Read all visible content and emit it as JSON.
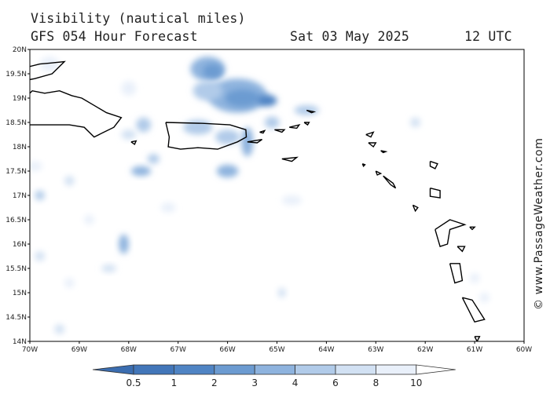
{
  "title": {
    "line1": "Visibility (nautical miles)",
    "model": "GFS 054 Hour Forecast",
    "date": "Sat 03 May 2025",
    "time": "12 UTC"
  },
  "credit": "© www.PassageWeather.com",
  "map_extent": {
    "lon_min": -70,
    "lon_max": -60,
    "lat_min": 14,
    "lat_max": 20
  },
  "lat_ticks": [
    {
      "value": 20,
      "label": "20N"
    },
    {
      "value": 19.5,
      "label": "19.5N"
    },
    {
      "value": 19,
      "label": "19N"
    },
    {
      "value": 18.5,
      "label": "18.5N"
    },
    {
      "value": 18,
      "label": "18N"
    },
    {
      "value": 17.5,
      "label": "17.5N"
    },
    {
      "value": 17,
      "label": "17N"
    },
    {
      "value": 16.5,
      "label": "16.5N"
    },
    {
      "value": 16,
      "label": "16N"
    },
    {
      "value": 15.5,
      "label": "15.5N"
    },
    {
      "value": 15,
      "label": "15N"
    },
    {
      "value": 14.5,
      "label": "14.5N"
    },
    {
      "value": 14,
      "label": "14N"
    }
  ],
  "lon_ticks": [
    {
      "value": -70,
      "label": "70W"
    },
    {
      "value": -69,
      "label": "69W"
    },
    {
      "value": -68,
      "label": "68W"
    },
    {
      "value": -67,
      "label": "67W"
    },
    {
      "value": -66,
      "label": "66W"
    },
    {
      "value": -65,
      "label": "65W"
    },
    {
      "value": -64,
      "label": "64W"
    },
    {
      "value": -63,
      "label": "63W"
    },
    {
      "value": -62,
      "label": "62W"
    },
    {
      "value": -61,
      "label": "61W"
    },
    {
      "value": -60,
      "label": "60W"
    }
  ],
  "legend": {
    "levels": [
      "0.5",
      "1",
      "2",
      "3",
      "4",
      "6",
      "8",
      "10"
    ],
    "colors": [
      "#4276b9",
      "#4f84c4",
      "#6c9bd1",
      "#8eb3de",
      "#b1cbe9",
      "#d2e1f3",
      "#e9f0fa",
      "#ffffff"
    ]
  },
  "visibility_blobs": [
    {
      "lon": -66.4,
      "lat": 19.6,
      "rlon": 0.35,
      "rlat": 0.25,
      "color": "#8eb3de"
    },
    {
      "lon": -66.3,
      "lat": 19.55,
      "rlon": 0.2,
      "rlat": 0.15,
      "color": "#6c9bd1"
    },
    {
      "lon": -65.8,
      "lat": 19.05,
      "rlon": 0.6,
      "rlat": 0.35,
      "color": "#8eb3de"
    },
    {
      "lon": -65.7,
      "lat": 19.0,
      "rlon": 0.35,
      "rlat": 0.18,
      "color": "#6c9bd1"
    },
    {
      "lon": -65.2,
      "lat": 18.95,
      "rlon": 0.2,
      "rlat": 0.12,
      "color": "#4f84c4"
    },
    {
      "lon": -64.4,
      "lat": 18.75,
      "rlon": 0.25,
      "rlat": 0.1,
      "color": "#b1cbe9"
    },
    {
      "lon": -65.6,
      "lat": 18.1,
      "rlon": 0.12,
      "rlat": 0.3,
      "color": "#8eb3de"
    },
    {
      "lon": -66.6,
      "lat": 18.4,
      "rlon": 0.3,
      "rlat": 0.15,
      "color": "#b1cbe9"
    },
    {
      "lon": -66.0,
      "lat": 18.2,
      "rlon": 0.25,
      "rlat": 0.15,
      "color": "#b1cbe9"
    },
    {
      "lon": -66.4,
      "lat": 19.15,
      "rlon": 0.3,
      "rlat": 0.2,
      "color": "#b1cbe9"
    },
    {
      "lon": -65.1,
      "lat": 18.5,
      "rlon": 0.15,
      "rlat": 0.12,
      "color": "#b1cbe9"
    },
    {
      "lon": -67.7,
      "lat": 18.45,
      "rlon": 0.15,
      "rlat": 0.15,
      "color": "#b1cbe9"
    },
    {
      "lon": -68.0,
      "lat": 18.25,
      "rlon": 0.15,
      "rlat": 0.1,
      "color": "#d2e1f3"
    },
    {
      "lon": -67.75,
      "lat": 17.5,
      "rlon": 0.2,
      "rlat": 0.1,
      "color": "#8eb3de"
    },
    {
      "lon": -66.0,
      "lat": 17.5,
      "rlon": 0.22,
      "rlat": 0.13,
      "color": "#8eb3de"
    },
    {
      "lon": -67.5,
      "lat": 17.75,
      "rlon": 0.12,
      "rlat": 0.1,
      "color": "#b1cbe9"
    },
    {
      "lon": -68.1,
      "lat": 16.0,
      "rlon": 0.1,
      "rlat": 0.2,
      "color": "#8eb3de"
    },
    {
      "lon": -69.8,
      "lat": 17.0,
      "rlon": 0.1,
      "rlat": 0.1,
      "color": "#b1cbe9"
    },
    {
      "lon": -69.8,
      "lat": 15.75,
      "rlon": 0.1,
      "rlat": 0.1,
      "color": "#d2e1f3"
    },
    {
      "lon": -69.4,
      "lat": 14.25,
      "rlon": 0.1,
      "rlat": 0.1,
      "color": "#d2e1f3"
    },
    {
      "lon": -69.2,
      "lat": 17.3,
      "rlon": 0.1,
      "rlat": 0.1,
      "color": "#d2e1f3"
    },
    {
      "lon": -69.9,
      "lat": 17.6,
      "rlon": 0.15,
      "rlat": 0.1,
      "color": "#e9f0fa"
    },
    {
      "lon": -68.4,
      "lat": 15.5,
      "rlon": 0.15,
      "rlat": 0.08,
      "color": "#d2e1f3"
    },
    {
      "lon": -69.2,
      "lat": 15.2,
      "rlon": 0.1,
      "rlat": 0.1,
      "color": "#e9f0fa"
    },
    {
      "lon": -67.2,
      "lat": 16.75,
      "rlon": 0.15,
      "rlat": 0.1,
      "color": "#e9f0fa"
    },
    {
      "lon": -64.7,
      "lat": 16.9,
      "rlon": 0.2,
      "rlat": 0.1,
      "color": "#e9f0fa"
    },
    {
      "lon": -62.2,
      "lat": 18.5,
      "rlon": 0.1,
      "rlat": 0.1,
      "color": "#d2e1f3"
    },
    {
      "lon": -64.9,
      "lat": 15.0,
      "rlon": 0.08,
      "rlat": 0.1,
      "color": "#d2e1f3"
    },
    {
      "lon": -68.8,
      "lat": 16.5,
      "rlon": 0.1,
      "rlat": 0.1,
      "color": "#e9f0fa"
    },
    {
      "lon": -69.6,
      "lat": 19.7,
      "rlon": 0.2,
      "rlat": 0.15,
      "color": "#e9f0fa"
    },
    {
      "lon": -68.0,
      "lat": 19.2,
      "rlon": 0.15,
      "rlat": 0.15,
      "color": "#e9f0fa"
    },
    {
      "lon": -61.0,
      "lat": 15.3,
      "rlon": 0.1,
      "rlat": 0.1,
      "color": "#e9f0fa"
    },
    {
      "lon": -60.8,
      "lat": 14.9,
      "rlon": 0.1,
      "rlat": 0.1,
      "color": "#e9f0fa"
    }
  ],
  "coastlines": [
    {
      "name": "hispaniola",
      "points": [
        [
          -70,
          18.45
        ],
        [
          -69.6,
          18.45
        ],
        [
          -69.2,
          18.45
        ],
        [
          -68.9,
          18.4
        ],
        [
          -68.7,
          18.2
        ],
        [
          -68.5,
          18.3
        ],
        [
          -68.3,
          18.4
        ],
        [
          -68.15,
          18.6
        ],
        [
          -68.45,
          18.7
        ],
        [
          -68.7,
          18.85
        ],
        [
          -68.95,
          19.0
        ],
        [
          -69.15,
          19.05
        ],
        [
          -69.4,
          19.15
        ],
        [
          -69.7,
          19.1
        ],
        [
          -69.95,
          19.15
        ],
        [
          -70,
          19.1
        ]
      ]
    },
    {
      "name": "hispaniola-north-coast",
      "points": [
        [
          -70,
          19.65
        ],
        [
          -69.8,
          19.7
        ],
        [
          -69.6,
          19.72
        ],
        [
          -69.3,
          19.75
        ],
        [
          -69.55,
          19.5
        ],
        [
          -69.9,
          19.4
        ],
        [
          -70,
          19.38
        ]
      ]
    },
    {
      "name": "puerto-rico",
      "points": [
        [
          -67.25,
          18.5
        ],
        [
          -66.5,
          18.48
        ],
        [
          -65.95,
          18.45
        ],
        [
          -65.63,
          18.35
        ],
        [
          -65.62,
          18.2
        ],
        [
          -65.8,
          18.1
        ],
        [
          -66.2,
          17.95
        ],
        [
          -66.6,
          17.98
        ],
        [
          -66.95,
          17.95
        ],
        [
          -67.2,
          18.0
        ],
        [
          -67.18,
          18.2
        ],
        [
          -67.25,
          18.5
        ]
      ]
    },
    {
      "name": "mona-island",
      "points": [
        [
          -67.95,
          18.1
        ],
        [
          -67.85,
          18.12
        ],
        [
          -67.88,
          18.05
        ],
        [
          -67.95,
          18.1
        ]
      ]
    },
    {
      "name": "vieques",
      "points": [
        [
          -65.6,
          18.1
        ],
        [
          -65.3,
          18.15
        ],
        [
          -65.4,
          18.08
        ],
        [
          -65.6,
          18.1
        ]
      ]
    },
    {
      "name": "culebra",
      "points": [
        [
          -65.35,
          18.3
        ],
        [
          -65.25,
          18.33
        ],
        [
          -65.28,
          18.28
        ],
        [
          -65.35,
          18.3
        ]
      ]
    },
    {
      "name": "st-thomas",
      "points": [
        [
          -65.05,
          18.35
        ],
        [
          -64.85,
          18.35
        ],
        [
          -64.9,
          18.3
        ],
        [
          -65.05,
          18.35
        ]
      ]
    },
    {
      "name": "tortola",
      "points": [
        [
          -64.75,
          18.4
        ],
        [
          -64.55,
          18.45
        ],
        [
          -64.6,
          18.38
        ],
        [
          -64.75,
          18.4
        ]
      ]
    },
    {
      "name": "virgin-gorda",
      "points": [
        [
          -64.45,
          18.5
        ],
        [
          -64.35,
          18.5
        ],
        [
          -64.38,
          18.45
        ],
        [
          -64.45,
          18.5
        ]
      ]
    },
    {
      "name": "anegada",
      "points": [
        [
          -64.4,
          18.75
        ],
        [
          -64.25,
          18.72
        ],
        [
          -64.3,
          18.7
        ],
        [
          -64.4,
          18.75
        ]
      ]
    },
    {
      "name": "st-croix",
      "points": [
        [
          -64.9,
          17.75
        ],
        [
          -64.6,
          17.78
        ],
        [
          -64.7,
          17.7
        ],
        [
          -64.9,
          17.75
        ]
      ]
    },
    {
      "name": "anguilla",
      "points": [
        [
          -63.2,
          18.25
        ],
        [
          -63.05,
          18.3
        ],
        [
          -63.1,
          18.2
        ],
        [
          -63.2,
          18.25
        ]
      ]
    },
    {
      "name": "st-martin",
      "points": [
        [
          -63.15,
          18.08
        ],
        [
          -63.0,
          18.08
        ],
        [
          -63.05,
          18.0
        ],
        [
          -63.15,
          18.08
        ]
      ]
    },
    {
      "name": "st-barth",
      "points": [
        [
          -62.9,
          17.92
        ],
        [
          -62.8,
          17.9
        ],
        [
          -62.85,
          17.88
        ],
        [
          -62.9,
          17.92
        ]
      ]
    },
    {
      "name": "saba",
      "points": [
        [
          -63.27,
          17.65
        ],
        [
          -63.22,
          17.63
        ],
        [
          -63.25,
          17.6
        ],
        [
          -63.27,
          17.65
        ]
      ]
    },
    {
      "name": "st-eustatius",
      "points": [
        [
          -63.0,
          17.5
        ],
        [
          -62.9,
          17.45
        ],
        [
          -62.97,
          17.42
        ],
        [
          -63.0,
          17.5
        ]
      ]
    },
    {
      "name": "st-kitts",
      "points": [
        [
          -62.85,
          17.4
        ],
        [
          -62.65,
          17.25
        ],
        [
          -62.6,
          17.15
        ],
        [
          -62.7,
          17.22
        ],
        [
          -62.85,
          17.4
        ]
      ]
    },
    {
      "name": "antigua",
      "points": [
        [
          -61.9,
          17.15
        ],
        [
          -61.7,
          17.1
        ],
        [
          -61.7,
          16.95
        ],
        [
          -61.9,
          16.98
        ],
        [
          -61.9,
          17.15
        ]
      ]
    },
    {
      "name": "barbuda",
      "points": [
        [
          -61.9,
          17.7
        ],
        [
          -61.75,
          17.65
        ],
        [
          -61.8,
          17.55
        ],
        [
          -61.9,
          17.6
        ],
        [
          -61.9,
          17.7
        ]
      ]
    },
    {
      "name": "montserrat",
      "points": [
        [
          -62.25,
          16.8
        ],
        [
          -62.15,
          16.75
        ],
        [
          -62.2,
          16.68
        ],
        [
          -62.25,
          16.8
        ]
      ]
    },
    {
      "name": "guadeloupe",
      "points": [
        [
          -61.8,
          16.3
        ],
        [
          -61.5,
          16.5
        ],
        [
          -61.2,
          16.4
        ],
        [
          -61.5,
          16.3
        ],
        [
          -61.55,
          16.0
        ],
        [
          -61.7,
          15.95
        ],
        [
          -61.8,
          16.3
        ]
      ]
    },
    {
      "name": "desirade",
      "points": [
        [
          -61.1,
          16.35
        ],
        [
          -61.0,
          16.35
        ],
        [
          -61.05,
          16.3
        ],
        [
          -61.1,
          16.35
        ]
      ]
    },
    {
      "name": "marie-galante",
      "points": [
        [
          -61.35,
          15.95
        ],
        [
          -61.2,
          15.95
        ],
        [
          -61.25,
          15.85
        ],
        [
          -61.35,
          15.95
        ]
      ]
    },
    {
      "name": "dominica",
      "points": [
        [
          -61.5,
          15.6
        ],
        [
          -61.3,
          15.6
        ],
        [
          -61.25,
          15.25
        ],
        [
          -61.4,
          15.2
        ],
        [
          -61.5,
          15.6
        ]
      ]
    },
    {
      "name": "martinique",
      "points": [
        [
          -61.25,
          14.9
        ],
        [
          -61.05,
          14.85
        ],
        [
          -60.8,
          14.45
        ],
        [
          -61.0,
          14.4
        ],
        [
          -61.25,
          14.9
        ]
      ]
    },
    {
      "name": "st-lucia",
      "points": [
        [
          -61.0,
          14.1
        ],
        [
          -60.9,
          14.1
        ],
        [
          -60.95,
          14.0
        ],
        [
          -61.0,
          14.1
        ]
      ]
    }
  ]
}
